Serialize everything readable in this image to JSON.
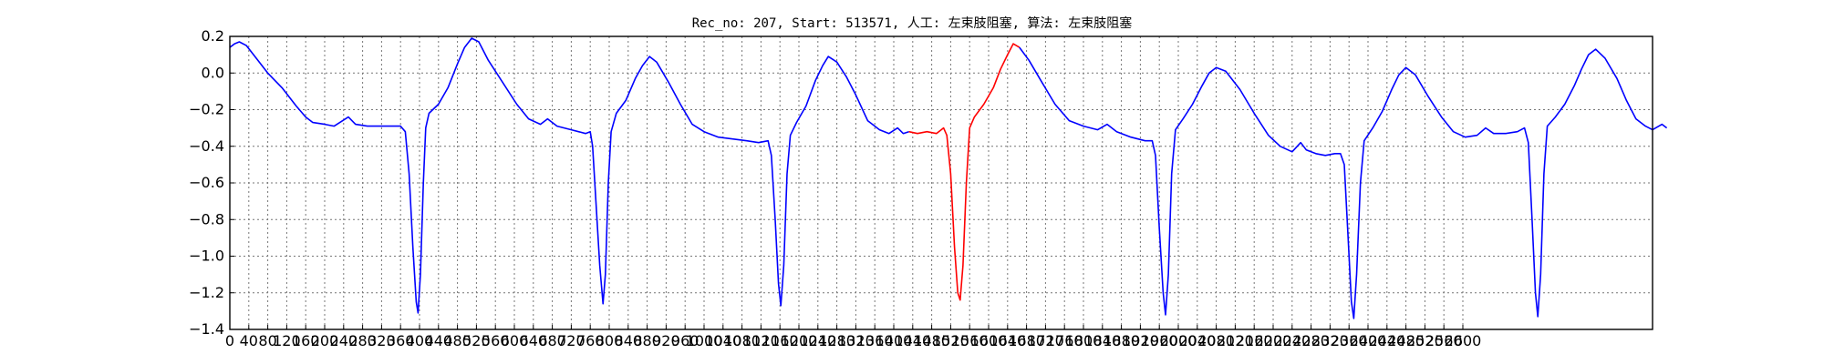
{
  "chart_data": {
    "type": "line",
    "title": "Rec_no: 207, Start: 513571, 人工: 左束肢阻塞, 算法: 左束肢阻塞",
    "xlabel": "",
    "ylabel": "",
    "xlim": [
      0,
      3000
    ],
    "ylim": [
      -1.4,
      0.2
    ],
    "grid": true,
    "x_ticks": [
      0,
      40,
      80,
      120,
      160,
      200,
      240,
      280,
      320,
      360,
      400,
      440,
      480,
      520,
      560,
      600,
      640,
      680,
      720,
      760,
      800,
      840,
      880,
      920,
      960,
      1000,
      1040,
      1080,
      1120,
      1160,
      1200,
      1240,
      1280,
      1320,
      1360,
      1400,
      1440,
      1480,
      1520,
      1560,
      1600,
      1640,
      1680,
      1720,
      1760,
      1800,
      1840,
      1880,
      1920,
      1960,
      2000,
      2040,
      2080,
      2120,
      2160,
      2200,
      2240,
      2280,
      2320,
      2360,
      2400,
      2440,
      2480,
      2520,
      2560,
      2600
    ],
    "y_ticks": [
      0.2,
      0.0,
      -0.2,
      -0.4,
      -0.6,
      -0.8,
      -1.0,
      -1.2,
      -1.4
    ],
    "y_tick_labels": [
      "0.2",
      "0.0",
      "−0.2",
      "−0.4",
      "−0.6",
      "−0.8",
      "−1.0",
      "−1.2",
      "−1.4"
    ],
    "colors": {
      "signal": "#0000ff",
      "highlight": "#ff0000"
    },
    "series": [
      {
        "color": "#0000ff",
        "points": [
          [
            0,
            0.14
          ],
          [
            10,
            0.16
          ],
          [
            20,
            0.17
          ],
          [
            35,
            0.15
          ],
          [
            50,
            0.1
          ],
          [
            80,
            0.0
          ],
          [
            110,
            -0.08
          ],
          [
            140,
            -0.18
          ],
          [
            160,
            -0.24
          ],
          [
            175,
            -0.27
          ],
          [
            200,
            -0.28
          ],
          [
            220,
            -0.29
          ],
          [
            250,
            -0.24
          ],
          [
            265,
            -0.28
          ],
          [
            290,
            -0.29
          ],
          [
            320,
            -0.29
          ],
          [
            340,
            -0.29
          ],
          [
            360,
            -0.29
          ],
          [
            370,
            -0.32
          ],
          [
            378,
            -0.55
          ],
          [
            386,
            -0.95
          ],
          [
            393,
            -1.25
          ],
          [
            397,
            -1.31
          ],
          [
            402,
            -1.1
          ],
          [
            408,
            -0.6
          ],
          [
            413,
            -0.3
          ],
          [
            420,
            -0.22
          ],
          [
            440,
            -0.17
          ],
          [
            460,
            -0.08
          ],
          [
            480,
            0.05
          ],
          [
            495,
            0.14
          ],
          [
            510,
            0.19
          ],
          [
            525,
            0.17
          ],
          [
            545,
            0.07
          ],
          [
            575,
            -0.05
          ],
          [
            605,
            -0.17
          ],
          [
            630,
            -0.25
          ],
          [
            655,
            -0.28
          ],
          [
            670,
            -0.25
          ],
          [
            690,
            -0.29
          ],
          [
            720,
            -0.31
          ],
          [
            750,
            -0.33
          ],
          [
            760,
            -0.32
          ],
          [
            765,
            -0.4
          ],
          [
            772,
            -0.7
          ],
          [
            780,
            -1.05
          ],
          [
            787,
            -1.26
          ],
          [
            792,
            -1.1
          ],
          [
            798,
            -0.6
          ],
          [
            804,
            -0.32
          ],
          [
            815,
            -0.22
          ],
          [
            835,
            -0.15
          ],
          [
            855,
            -0.03
          ],
          [
            870,
            0.04
          ],
          [
            885,
            0.09
          ],
          [
            900,
            0.06
          ],
          [
            925,
            -0.05
          ],
          [
            950,
            -0.17
          ],
          [
            975,
            -0.28
          ],
          [
            1000,
            -0.32
          ],
          [
            1030,
            -0.35
          ],
          [
            1060,
            -0.36
          ],
          [
            1090,
            -0.37
          ],
          [
            1115,
            -0.38
          ],
          [
            1135,
            -0.37
          ],
          [
            1142,
            -0.45
          ],
          [
            1150,
            -0.8
          ],
          [
            1157,
            -1.15
          ],
          [
            1162,
            -1.27
          ],
          [
            1168,
            -1.05
          ],
          [
            1175,
            -0.55
          ],
          [
            1182,
            -0.34
          ],
          [
            1195,
            -0.27
          ],
          [
            1215,
            -0.18
          ],
          [
            1235,
            -0.04
          ],
          [
            1250,
            0.04
          ],
          [
            1262,
            0.09
          ],
          [
            1280,
            0.06
          ],
          [
            1300,
            -0.02
          ],
          [
            1320,
            -0.12
          ],
          [
            1345,
            -0.26
          ],
          [
            1370,
            -0.31
          ],
          [
            1390,
            -0.33
          ],
          [
            1408,
            -0.3
          ],
          [
            1420,
            -0.33
          ],
          [
            1432,
            -0.32
          ]
        ]
      },
      {
        "color": "#ff0000",
        "points": [
          [
            1432,
            -0.32
          ],
          [
            1450,
            -0.33
          ],
          [
            1470,
            -0.32
          ],
          [
            1490,
            -0.33
          ],
          [
            1505,
            -0.3
          ],
          [
            1512,
            -0.34
          ],
          [
            1520,
            -0.55
          ],
          [
            1528,
            -0.95
          ],
          [
            1535,
            -1.2
          ],
          [
            1540,
            -1.24
          ],
          [
            1546,
            -1.05
          ],
          [
            1553,
            -0.6
          ],
          [
            1560,
            -0.3
          ],
          [
            1570,
            -0.24
          ],
          [
            1590,
            -0.17
          ],
          [
            1610,
            -0.08
          ],
          [
            1625,
            0.02
          ],
          [
            1640,
            0.1
          ],
          [
            1652,
            0.16
          ],
          [
            1665,
            0.14
          ]
        ]
      },
      {
        "color": "#0000ff",
        "points": [
          [
            1665,
            0.14
          ],
          [
            1685,
            0.07
          ],
          [
            1710,
            -0.04
          ],
          [
            1740,
            -0.17
          ],
          [
            1770,
            -0.26
          ],
          [
            1800,
            -0.29
          ],
          [
            1830,
            -0.31
          ],
          [
            1850,
            -0.28
          ],
          [
            1870,
            -0.32
          ],
          [
            1900,
            -0.35
          ],
          [
            1930,
            -0.37
          ],
          [
            1945,
            -0.37
          ],
          [
            1952,
            -0.45
          ],
          [
            1960,
            -0.85
          ],
          [
            1968,
            -1.2
          ],
          [
            1973,
            -1.32
          ],
          [
            1979,
            -1.1
          ],
          [
            1986,
            -0.55
          ],
          [
            1994,
            -0.31
          ],
          [
            2010,
            -0.25
          ],
          [
            2030,
            -0.17
          ],
          [
            2050,
            -0.07
          ],
          [
            2065,
            0.0
          ],
          [
            2080,
            0.03
          ],
          [
            2100,
            0.01
          ],
          [
            2130,
            -0.09
          ],
          [
            2160,
            -0.22
          ],
          [
            2190,
            -0.34
          ],
          [
            2215,
            -0.4
          ],
          [
            2240,
            -0.43
          ],
          [
            2258,
            -0.38
          ],
          [
            2270,
            -0.42
          ],
          [
            2290,
            -0.44
          ],
          [
            2310,
            -0.45
          ],
          [
            2330,
            -0.44
          ],
          [
            2342,
            -0.44
          ],
          [
            2350,
            -0.5
          ],
          [
            2358,
            -0.9
          ],
          [
            2365,
            -1.25
          ],
          [
            2370,
            -1.34
          ],
          [
            2376,
            -1.1
          ],
          [
            2384,
            -0.6
          ],
          [
            2392,
            -0.37
          ],
          [
            2410,
            -0.3
          ],
          [
            2430,
            -0.21
          ],
          [
            2450,
            -0.09
          ],
          [
            2465,
            -0.01
          ],
          [
            2480,
            0.03
          ],
          [
            2500,
            -0.01
          ],
          [
            2525,
            -0.12
          ],
          [
            2555,
            -0.24
          ],
          [
            2580,
            -0.32
          ],
          [
            2605,
            -0.35
          ],
          [
            2630,
            -0.34
          ],
          [
            2648,
            -0.3
          ],
          [
            2665,
            -0.33
          ],
          [
            2690,
            -0.33
          ],
          [
            2715,
            -0.32
          ],
          [
            2730,
            -0.3
          ],
          [
            2738,
            -0.38
          ],
          [
            2746,
            -0.8
          ],
          [
            2753,
            -1.2
          ],
          [
            2758,
            -1.33
          ],
          [
            2764,
            -1.1
          ],
          [
            2771,
            -0.55
          ],
          [
            2778,
            -0.29
          ],
          [
            2795,
            -0.24
          ],
          [
            2815,
            -0.17
          ],
          [
            2835,
            -0.07
          ],
          [
            2850,
            0.02
          ],
          [
            2865,
            0.1
          ],
          [
            2880,
            0.13
          ],
          [
            2900,
            0.08
          ],
          [
            2925,
            -0.03
          ],
          [
            2945,
            -0.15
          ],
          [
            2965,
            -0.25
          ],
          [
            2985,
            -0.29
          ],
          [
            3000,
            -0.31
          ],
          [
            3020,
            -0.28
          ],
          [
            3030,
            -0.3
          ]
        ]
      }
    ]
  }
}
